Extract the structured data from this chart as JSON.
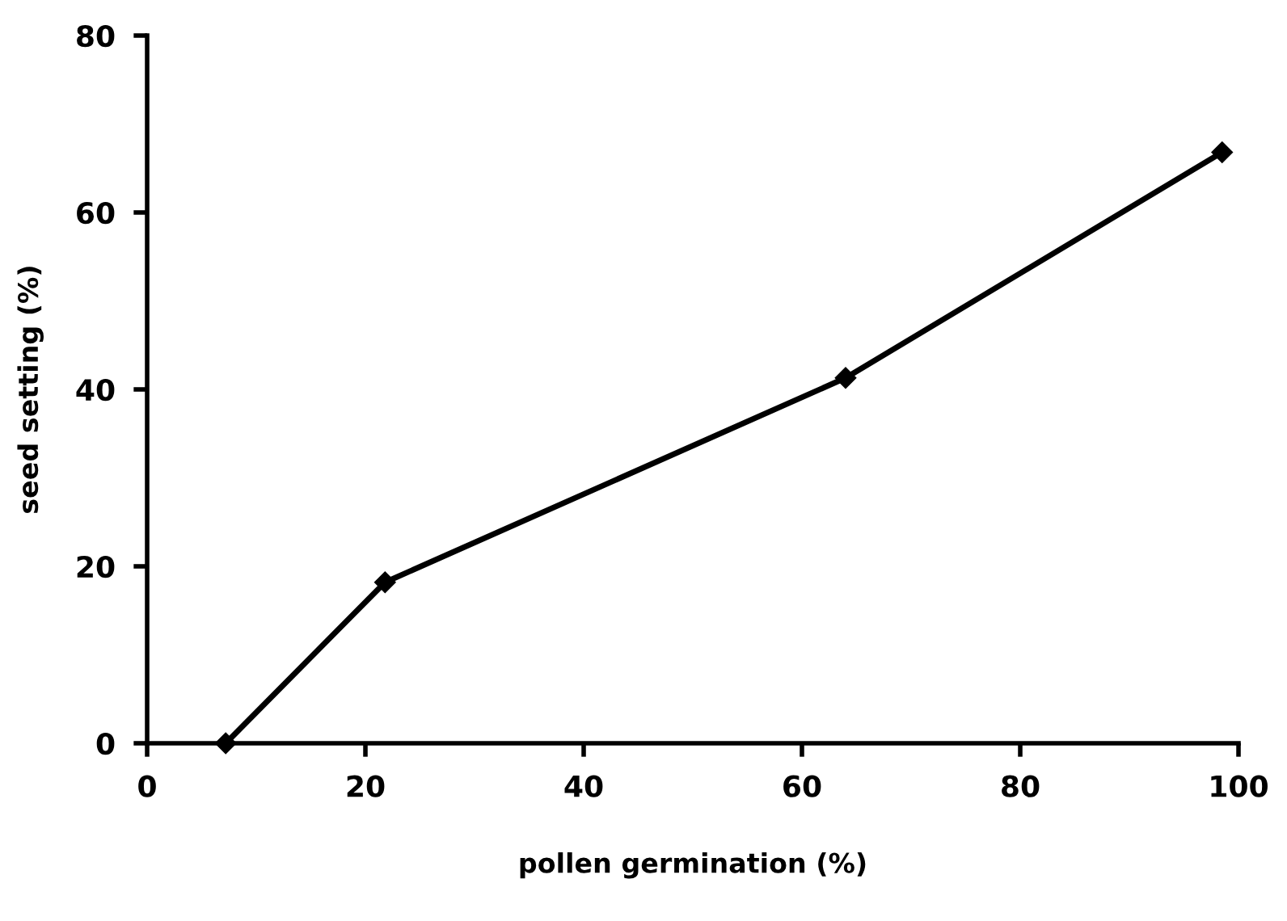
{
  "chart_data": {
    "type": "line",
    "xlabel": "pollen germination (%)",
    "ylabel": "seed setting (%)",
    "series": [
      {
        "color": "#000000",
        "x": [
          7.2,
          21.8,
          64.0,
          98.5
        ],
        "values": [
          0,
          18.2,
          41.3,
          66.8
        ]
      }
    ],
    "xlim": [
      0,
      100
    ],
    "ylim": [
      0,
      80
    ],
    "xticks": [
      0,
      20,
      40,
      60,
      80,
      100
    ],
    "yticks": [
      0,
      20,
      40,
      60,
      80
    ],
    "grid": false,
    "marker": "diamond",
    "line_style": "solid"
  }
}
